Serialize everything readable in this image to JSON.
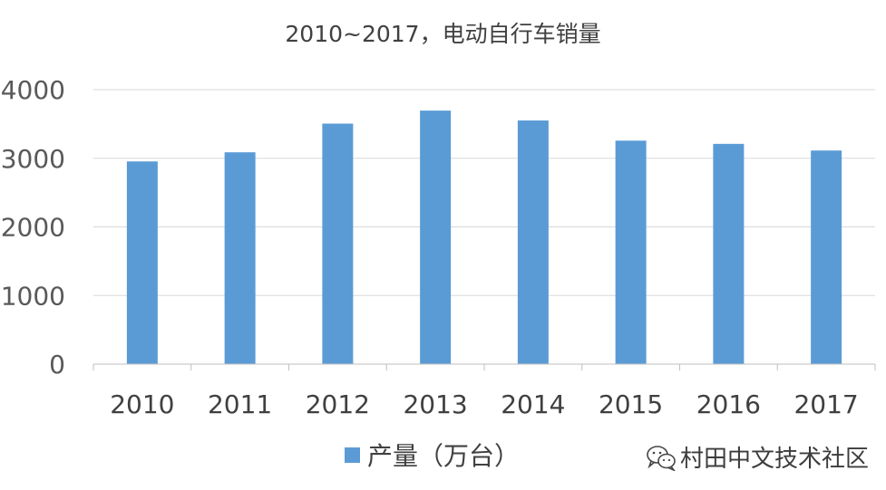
{
  "chart_data": {
    "type": "bar",
    "title": "2010~2017，电动自行车销量",
    "categories": [
      "2010",
      "2011",
      "2012",
      "2013",
      "2014",
      "2015",
      "2016",
      "2017"
    ],
    "series": [
      {
        "name": "产量（万台）",
        "values": [
          2954,
          3087,
          3505,
          3695,
          3551,
          3257,
          3210,
          3113
        ],
        "color": "#5b9bd5"
      }
    ],
    "yticks": [
      0,
      1000,
      2000,
      3000,
      4000
    ],
    "ylim": [
      0,
      4000
    ],
    "grid": true,
    "legend_position": "bottom"
  },
  "watermark": {
    "text": "村田中文技术社区",
    "icon": "wechat-icon"
  }
}
